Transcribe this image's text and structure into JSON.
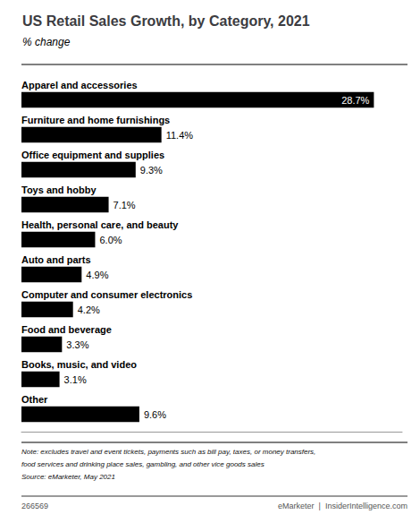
{
  "chart_data": {
    "type": "bar",
    "orientation": "horizontal",
    "title": "US Retail Sales Growth, by Category, 2021",
    "subtitle": "% change",
    "categories": [
      "Apparel and accessories",
      "Furniture and home furnishings",
      "Office equipment and supplies",
      "Toys and hobby",
      "Health, personal care, and beauty",
      "Auto and parts",
      "Computer and consumer electronics",
      "Food and beverage",
      "Books, music, and video",
      "Other"
    ],
    "values": [
      28.7,
      11.4,
      9.3,
      7.1,
      6.0,
      4.9,
      4.2,
      3.3,
      3.1,
      9.6
    ],
    "value_labels": [
      "28.7%",
      "11.4%",
      "9.3%",
      "7.1%",
      "6.0%",
      "4.9%",
      "4.2%",
      "3.3%",
      "3.1%",
      "9.6%"
    ],
    "data_labels": true,
    "color": "#000000",
    "xlim": [
      0,
      31
    ],
    "tick_labels": "y",
    "grid": false,
    "annotations": [
      "Note: excludes travel and event tickets, payments such as bill pay, taxes, or money transfers,",
      "food services and drinking place sales, gambling, and other vice goods sales",
      "Source: eMarketer, May 2021",
      "266569",
      "eMarketer",
      "|",
      "InsiderIntelligence.com"
    ]
  }
}
